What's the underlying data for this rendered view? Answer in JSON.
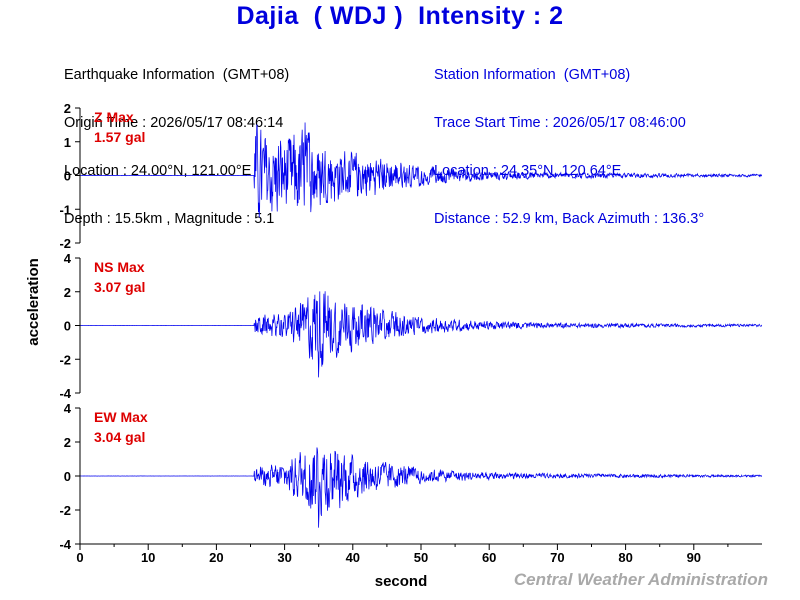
{
  "title": "Dajia  ( WDJ )  Intensity : 2",
  "earthquake_info": {
    "heading": "Earthquake Information  (GMT+08)",
    "origin_time": "Origin Time : 2026/05/17 08:46:14",
    "location": "Location : 24.00°N, 121.00°E",
    "depth_magnitude": "Depth : 15.5km , Magnitude : 5.1"
  },
  "station_info": {
    "heading": "Station Information  (GMT+08)",
    "trace_start": "Trace Start Time : 2026/05/17 08:46:00",
    "location": "Location : 24.35°N, 120.64°E",
    "distance_azimuth": "Distance : 52.9 km, Back Azimuth : 136.3°"
  },
  "credit": "Central Weather Administration",
  "colors": {
    "trace": "#0000ee",
    "max_label": "#dd0000",
    "title": "#0000dd",
    "credit": "#a9a9a9"
  },
  "chart_data": {
    "type": "line",
    "xlabel": "second",
    "ylabel": "acceleration",
    "xlim": [
      0,
      100
    ],
    "x_ticks": [
      0,
      10,
      20,
      30,
      40,
      50,
      60,
      70,
      80,
      90
    ],
    "grid": false,
    "panels": [
      {
        "component": "Z",
        "max_label": "Z Max",
        "max_value": "1.57 gal",
        "ylim": [
          -2,
          2
        ],
        "y_ticks": [
          -2,
          -1,
          0,
          1,
          2
        ],
        "onset": 25.5,
        "peak_time": 33,
        "peak_amplitude": 1.57,
        "envelope": [
          [
            0,
            0.02
          ],
          [
            25.4,
            0.02
          ],
          [
            25.6,
            1.5
          ],
          [
            27,
            1.3
          ],
          [
            30,
            1.1
          ],
          [
            33,
            1.4
          ],
          [
            36,
            0.9
          ],
          [
            40,
            0.7
          ],
          [
            45,
            0.5
          ],
          [
            50,
            0.3
          ],
          [
            55,
            0.2
          ],
          [
            60,
            0.14
          ],
          [
            70,
            0.09
          ],
          [
            80,
            0.07
          ],
          [
            90,
            0.05
          ],
          [
            100,
            0.04
          ]
        ]
      },
      {
        "component": "NS",
        "max_label": "NS Max",
        "max_value": "3.07 gal",
        "ylim": [
          -4,
          4
        ],
        "y_ticks": [
          -4,
          -2,
          0,
          2,
          4
        ],
        "onset": 25.5,
        "peak_time": 35,
        "peak_amplitude": 3.07,
        "envelope": [
          [
            0,
            0.03
          ],
          [
            25.4,
            0.03
          ],
          [
            25.6,
            0.6
          ],
          [
            30,
            0.7
          ],
          [
            33,
            1.6
          ],
          [
            35,
            2.6
          ],
          [
            37,
            1.9
          ],
          [
            40,
            1.5
          ],
          [
            45,
            0.9
          ],
          [
            50,
            0.5
          ],
          [
            55,
            0.35
          ],
          [
            60,
            0.25
          ],
          [
            70,
            0.15
          ],
          [
            80,
            0.12
          ],
          [
            90,
            0.09
          ],
          [
            100,
            0.07
          ]
        ]
      },
      {
        "component": "EW",
        "max_label": "EW Max",
        "max_value": "3.04 gal",
        "ylim": [
          -4,
          4
        ],
        "y_ticks": [
          -4,
          -2,
          0,
          2,
          4
        ],
        "onset": 25.5,
        "peak_time": 35,
        "peak_amplitude": 3.04,
        "envelope": [
          [
            0,
            0.03
          ],
          [
            25.4,
            0.03
          ],
          [
            25.6,
            0.5
          ],
          [
            30,
            0.8
          ],
          [
            33,
            1.7
          ],
          [
            35,
            2.5
          ],
          [
            37,
            2.1
          ],
          [
            40,
            1.4
          ],
          [
            45,
            0.8
          ],
          [
            50,
            0.45
          ],
          [
            55,
            0.3
          ],
          [
            60,
            0.22
          ],
          [
            70,
            0.14
          ],
          [
            80,
            0.11
          ],
          [
            90,
            0.08
          ],
          [
            100,
            0.06
          ]
        ]
      }
    ]
  }
}
